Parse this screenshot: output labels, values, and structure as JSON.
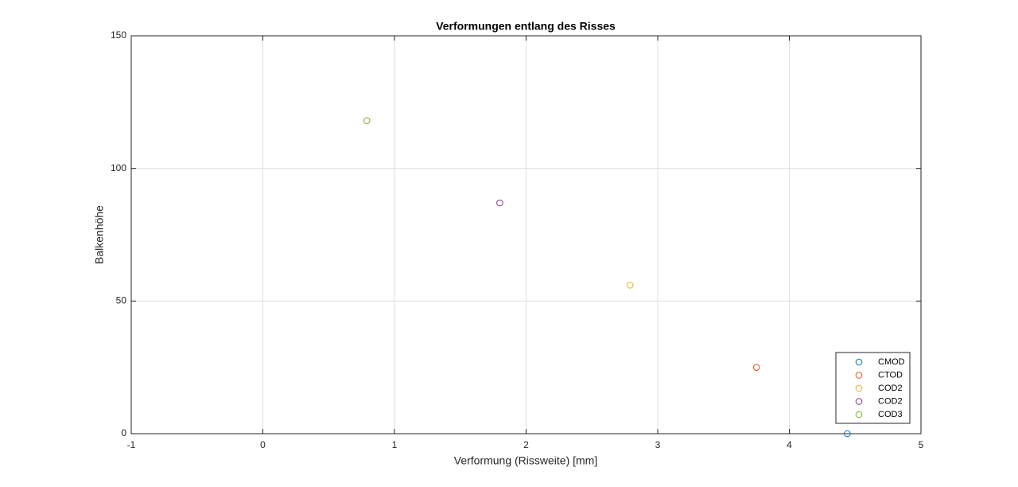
{
  "chart_data": {
    "type": "scatter",
    "title": "Verformungen entlang des Risses",
    "x_label": "Verformung (Rissweite) [mm]",
    "y_label": "Balkenhöhe",
    "series": [
      {
        "name": "CMOD",
        "color": "#0072BD",
        "x": [
          4.44
        ],
        "values": [
          0
        ]
      },
      {
        "name": "CTOD",
        "color": "#D95319",
        "x": [
          3.75
        ],
        "values": [
          25
        ]
      },
      {
        "name": "COD2",
        "color": "#EDB120",
        "x": [
          2.79
        ],
        "values": [
          56
        ]
      },
      {
        "name": "COD2",
        "color": "#7E2F8E",
        "x": [
          1.8
        ],
        "values": [
          87
        ]
      },
      {
        "name": "COD3",
        "color": "#77AC30",
        "x": [
          0.79
        ],
        "values": [
          118
        ]
      }
    ],
    "xlim": [
      -1,
      5
    ],
    "xticks": [
      -1,
      0,
      1,
      2,
      3,
      4,
      5
    ],
    "ylim": [
      0,
      150
    ],
    "yticks": [
      0,
      50,
      100,
      150
    ],
    "grid": true,
    "legend_position": "southeast"
  }
}
